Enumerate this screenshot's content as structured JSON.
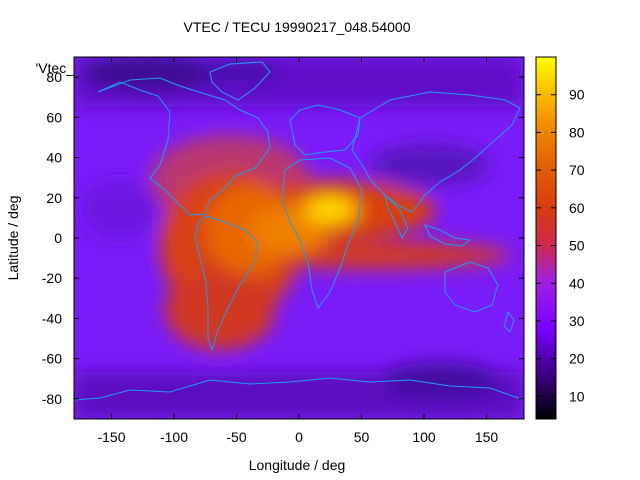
{
  "chart_data": {
    "type": "heatmap",
    "title": "VTEC / TECU 19990217_048.54000",
    "xlabel": "Longitude / deg",
    "ylabel": "Latitude / deg",
    "key_label": "'Vtec_",
    "xlim": [
      -180,
      180
    ],
    "ylim": [
      -90,
      90
    ],
    "x_ticks": [
      -150,
      -100,
      -50,
      0,
      50,
      100,
      150
    ],
    "y_ticks": [
      -80,
      -60,
      -40,
      -20,
      0,
      20,
      40,
      60,
      80
    ],
    "colorbar": {
      "min": 4,
      "max": 100,
      "ticks": [
        10,
        20,
        30,
        40,
        50,
        60,
        70,
        80,
        90
      ]
    },
    "palette": "gnuplot-heat (black-purple-red-orange-yellow)",
    "map_overlay": "coastlines",
    "grid": false,
    "peak": {
      "lon": 25,
      "lat": 10,
      "value": 95
    }
  }
}
